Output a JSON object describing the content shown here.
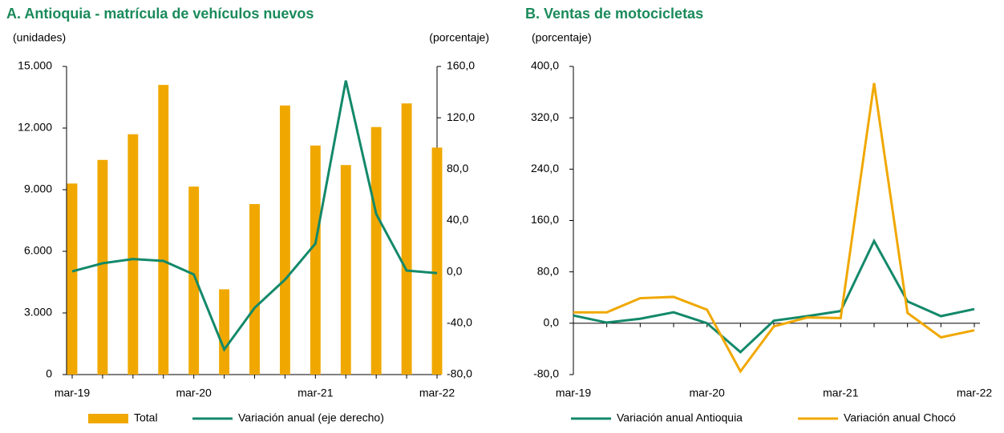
{
  "chart_data": [
    {
      "type": "bar_line",
      "title": "A. Antioquia - matrícula de vehículos nuevos",
      "ylabel": "(unidades)",
      "y2label": "(porcentaje)",
      "categories": [
        "mar-19",
        null,
        null,
        null,
        "mar-20",
        null,
        null,
        null,
        "mar-21",
        null,
        null,
        null,
        "mar-22"
      ],
      "ylim": [
        0,
        15000
      ],
      "yticks": [
        {
          "value": 0,
          "label": "0"
        },
        {
          "value": 3000,
          "label": "3.000"
        },
        {
          "value": 6000,
          "label": "6.000"
        },
        {
          "value": 9000,
          "label": "9.000"
        },
        {
          "value": 12000,
          "label": "12.000"
        },
        {
          "value": 15000,
          "label": "15.000"
        }
      ],
      "y2lim": [
        -80,
        160
      ],
      "y2ticks": [
        {
          "value": -80,
          "label": "-80,0"
        },
        {
          "value": -40,
          "label": "-40,0"
        },
        {
          "value": 0,
          "label": "0,0"
        },
        {
          "value": 40,
          "label": "40,0"
        },
        {
          "value": 80,
          "label": "80,0"
        },
        {
          "value": 120,
          "label": "120,0"
        },
        {
          "value": 160,
          "label": "160,0"
        }
      ],
      "series": [
        {
          "name": "Total",
          "type": "bar",
          "color": "#f0a800",
          "values": [
            9300,
            10450,
            11700,
            14100,
            9150,
            4150,
            8300,
            13100,
            11150,
            10200,
            12050,
            13200,
            11050
          ]
        },
        {
          "name": "Variación anual (eje derecho)",
          "type": "line",
          "axis": "y2",
          "color": "#13896a",
          "values": [
            0.4,
            6.7,
            10,
            8.5,
            -2,
            -60.5,
            -28,
            -6,
            22,
            149,
            45,
            1,
            -1
          ]
        }
      ]
    },
    {
      "type": "line",
      "title": "B. Ventas de motocicletas",
      "ylabel": "(porcentaje)",
      "categories": [
        "mar-19",
        null,
        null,
        null,
        "mar-20",
        null,
        null,
        null,
        "mar-21",
        null,
        null,
        null,
        "mar-22"
      ],
      "ylim": [
        -80,
        400
      ],
      "yticks": [
        {
          "value": -80,
          "label": "-80,0"
        },
        {
          "value": 0,
          "label": "0,0"
        },
        {
          "value": 80,
          "label": "80,0"
        },
        {
          "value": 160,
          "label": "160,0"
        },
        {
          "value": 240,
          "label": "240,0"
        },
        {
          "value": 320,
          "label": "320,0"
        },
        {
          "value": 400,
          "label": "400,0"
        }
      ],
      "series": [
        {
          "name": "Variación anual Antioquia",
          "type": "line",
          "color": "#13896a",
          "values": [
            12,
            1,
            7,
            17,
            0,
            -45,
            4,
            11,
            19,
            128,
            34,
            11,
            22
          ]
        },
        {
          "name": "Variación anual Chocó",
          "type": "line",
          "color": "#f0a800",
          "values": [
            17,
            17,
            39,
            41,
            21,
            -75,
            -5,
            9,
            8,
            374,
            16,
            -22,
            -11
          ]
        }
      ]
    }
  ]
}
